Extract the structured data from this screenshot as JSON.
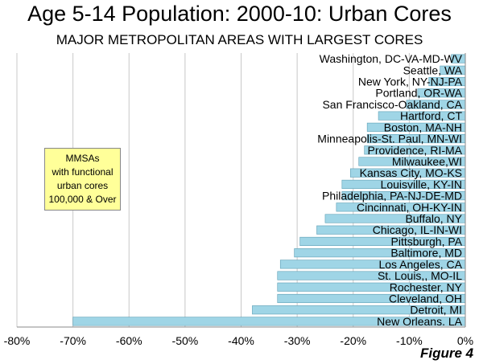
{
  "title": "Age 5-14 Population: 2000-10: Urban Cores",
  "subtitle": "MAJOR METROPOLITAN AREAS WITH LARGEST CORES",
  "figure_label": "Figure 4",
  "note": [
    "MMSAs",
    "with functional",
    "urban cores",
    "100,000 & Over"
  ],
  "colors": {
    "bar_fill": "#9fd5e6",
    "bar_stroke": "#5d9fb5",
    "grid": "#c8c8c8",
    "note_fill": "#ffff99"
  },
  "chart_data": {
    "type": "bar",
    "orientation": "horizontal",
    "title": "Age 5-14 Population: 2000-10: Urban Cores",
    "subtitle": "MAJOR METROPOLITAN AREAS WITH LARGEST CORES",
    "xlabel": "",
    "ylabel": "",
    "xlim": [
      -80,
      0
    ],
    "x_ticks": [
      "-80%",
      "-70%",
      "-60%",
      "-50%",
      "-40%",
      "-30%",
      "-20%",
      "-10%",
      "0%"
    ],
    "grid": "vertical",
    "legend": "none",
    "categories": [
      "Washington, DC-VA-MD-WV",
      "Seattle, WA",
      "New York, NY-NJ-PA",
      "Portland, OR-WA",
      "San Francisco-Oakland, CA",
      "Hartford, CT",
      "Boston, MA-NH",
      "Minneapolis-St. Paul, MN-WI",
      "Providence, RI-MA",
      "Milwaukee,WI",
      "Kansas City, MO-KS",
      "Louisville, KY-IN",
      "Philadelphia, PA-NJ-DE-MD",
      "Cincinnati, OH-KY-IN",
      "Buffalo, NY",
      "Chicago, IL-IN-WI",
      "Pittsburgh, PA",
      "Baltimore, MD",
      "Los Angeles, CA",
      "St. Louis,, MO-IL",
      "Rochester, NY",
      "Cleveland, OH",
      "Detroit,  MI",
      "New Orleans. LA"
    ],
    "values": [
      -2.5,
      -4.5,
      -6.5,
      -8.5,
      -10.5,
      -15.5,
      -17.5,
      -17.5,
      -18,
      -19,
      -20.5,
      -22,
      -22,
      -23,
      -25,
      -26.5,
      -29.5,
      -30.5,
      -33,
      -33.5,
      -33.5,
      -33.5,
      -38,
      -70
    ]
  }
}
